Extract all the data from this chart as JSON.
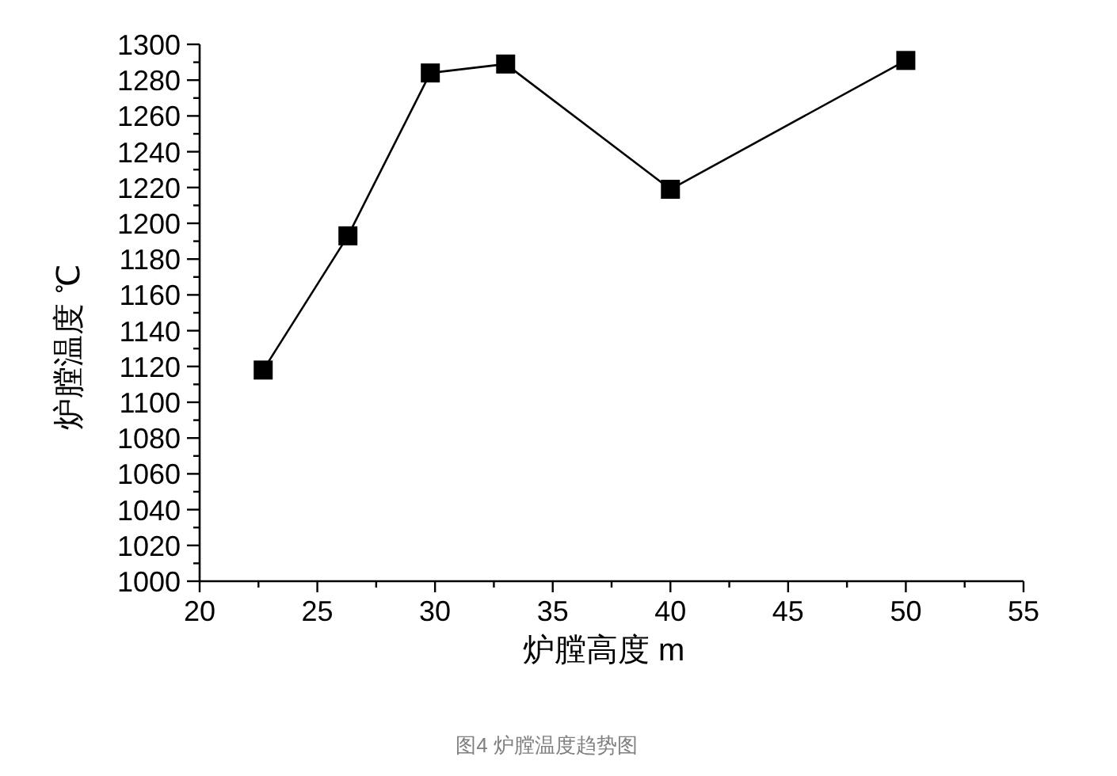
{
  "chart_data": {
    "type": "line",
    "xlabel": "炉膛高度 m",
    "ylabel": "炉膛温度 ℃",
    "annotations": [
      "图4 炉膛温度趋势图"
    ],
    "x": [
      22.7,
      26.3,
      29.8,
      33,
      40,
      50
    ],
    "series": [
      {
        "color": "#000000",
        "values": [
          1118,
          1193,
          1284,
          1289,
          1219,
          1291
        ]
      }
    ],
    "xlim": [
      20,
      55
    ],
    "xticks": [
      20,
      {
        "value": 22.5,
        "label": null
      },
      25,
      {
        "value": 27.5,
        "label": null
      },
      30,
      {
        "value": 32.5,
        "label": null
      },
      35,
      {
        "value": 37.5,
        "label": null
      },
      40,
      {
        "value": 42.5,
        "label": null
      },
      45,
      {
        "value": 47.5,
        "label": null
      },
      50,
      {
        "value": 52.5,
        "label": null
      },
      55
    ],
    "ylim": [
      1000,
      1300
    ],
    "yticks": [
      1000,
      {
        "value": 1010,
        "label": null
      },
      1020,
      {
        "value": 1030,
        "label": null
      },
      1040,
      {
        "value": 1050,
        "label": null
      },
      1060,
      {
        "value": 1070,
        "label": null
      },
      1080,
      {
        "value": 1090,
        "label": null
      },
      1100,
      {
        "value": 1110,
        "label": null
      },
      1120,
      {
        "value": 1130,
        "label": null
      },
      1140,
      {
        "value": 1150,
        "label": null
      },
      1160,
      {
        "value": 1170,
        "label": null
      },
      1180,
      {
        "value": 1190,
        "label": null
      },
      1200,
      {
        "value": 1210,
        "label": null
      },
      1220,
      {
        "value": 1230,
        "label": null
      },
      1240,
      {
        "value": 1250,
        "label": null
      },
      1260,
      {
        "value": 1270,
        "label": null
      },
      1280,
      {
        "value": 1290,
        "label": null
      },
      1300
    ],
    "marker": "square",
    "line_style": "solid"
  }
}
